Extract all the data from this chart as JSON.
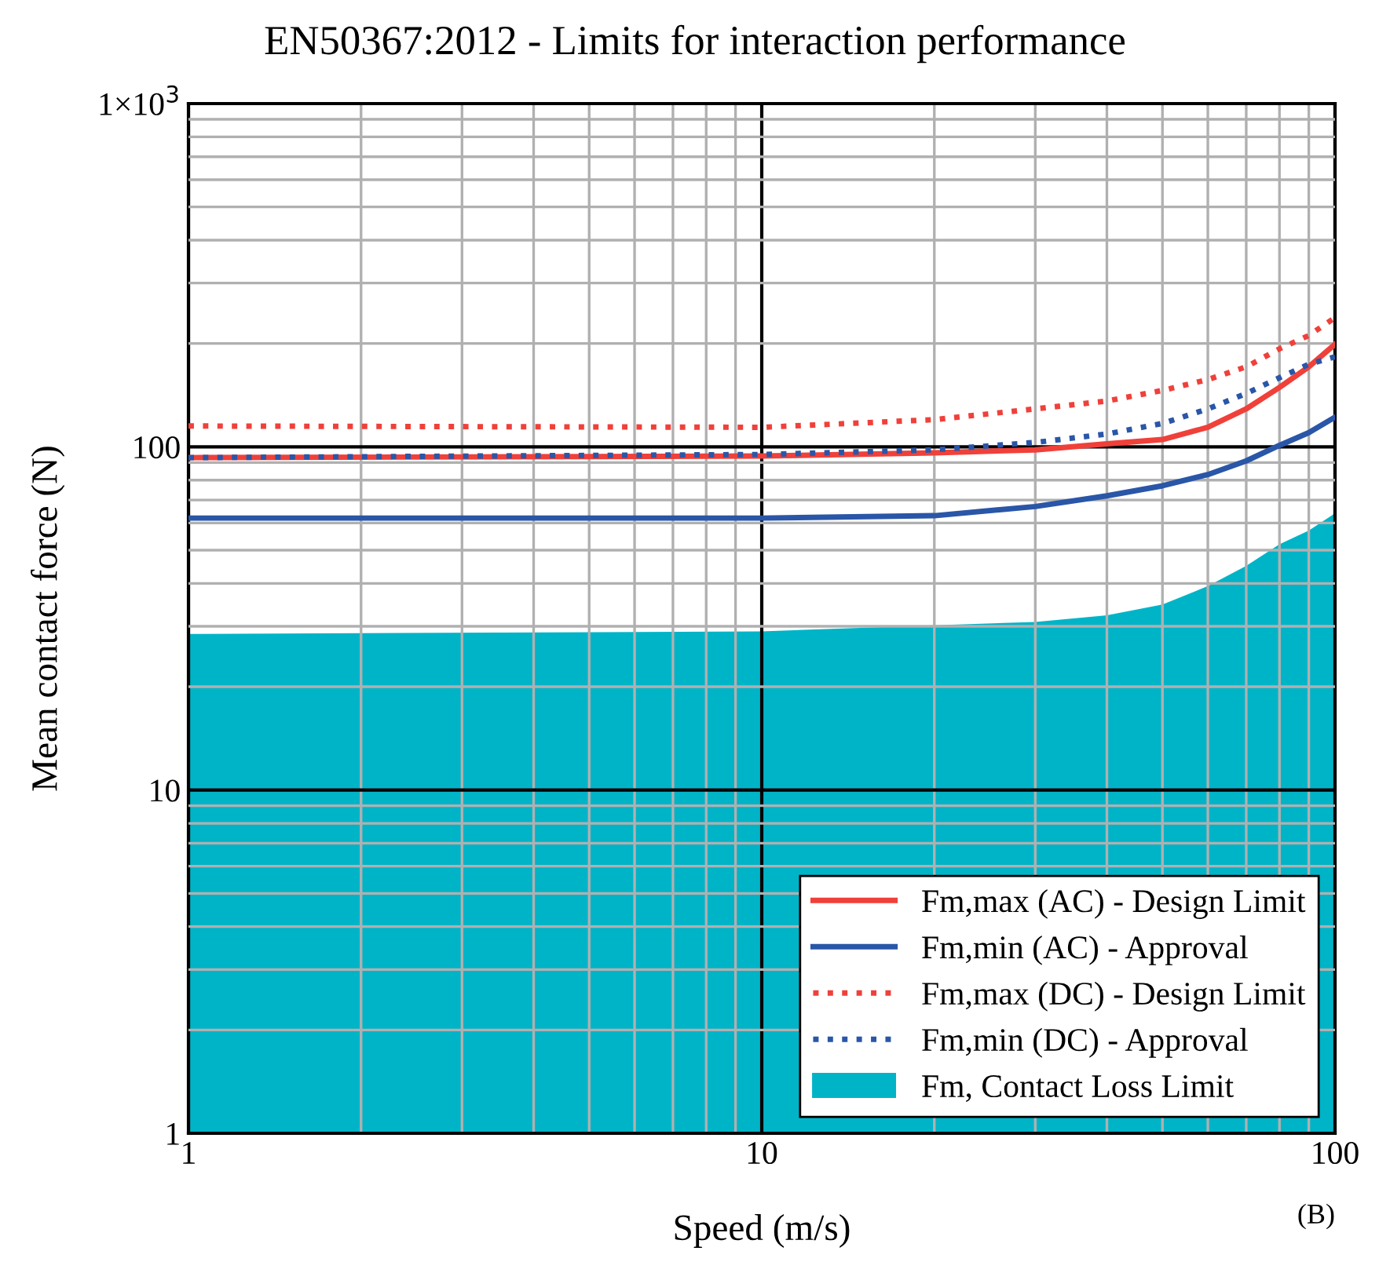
{
  "chart_data": {
    "type": "line",
    "title": "EN50367:2012 - Limits for interaction performance",
    "xlabel": "Speed (m/s)",
    "ylabel": "Mean contact force (N)",
    "x": [
      1,
      10,
      20,
      30,
      40,
      50,
      60,
      70,
      80,
      90,
      100
    ],
    "log": "xy",
    "xlim": [
      1,
      100
    ],
    "ylim": [
      1,
      1000
    ],
    "xticks": [
      1,
      10,
      100
    ],
    "yticks": [
      1,
      10,
      100,
      {
        "value": 1000,
        "label": "1×10$^{3}$"
      }
    ],
    "grid": true,
    "legend": "bottom right",
    "annotations": [
      "(B)"
    ],
    "series": [
      {
        "name": "Fm,max (AC) - Design Limit",
        "color": "#f0403a",
        "line_style": "solid",
        "values": [
          93,
          94,
          96,
          98,
          102,
          105,
          114,
          129,
          149,
          171,
          199
        ]
      },
      {
        "name": "Fm,min (AC) - Approval",
        "color": "#2a56a8",
        "line_style": "solid",
        "values": [
          62,
          62,
          63,
          67,
          72,
          77,
          83,
          91,
          101,
          110,
          122
        ]
      },
      {
        "name": "Fm,max (DC) - Design Limit",
        "color": "#f0403a",
        "line_style": "dotted",
        "values": [
          115,
          114,
          120,
          129,
          136,
          146,
          157,
          171,
          193,
          211,
          238
        ]
      },
      {
        "name": "Fm,min (DC) - Approval",
        "color": "#2a56a8",
        "line_style": "dotted",
        "values": [
          93,
          95,
          98,
          103,
          109,
          117,
          129,
          143,
          159,
          174,
          183
        ]
      },
      {
        "name": "Fm, Contact Loss Limit",
        "color": "#00b4c8",
        "type": "area",
        "values": [
          28.5,
          29,
          30.2,
          30.9,
          32.3,
          34.7,
          39.3,
          45,
          52,
          57,
          64
        ]
      }
    ]
  }
}
